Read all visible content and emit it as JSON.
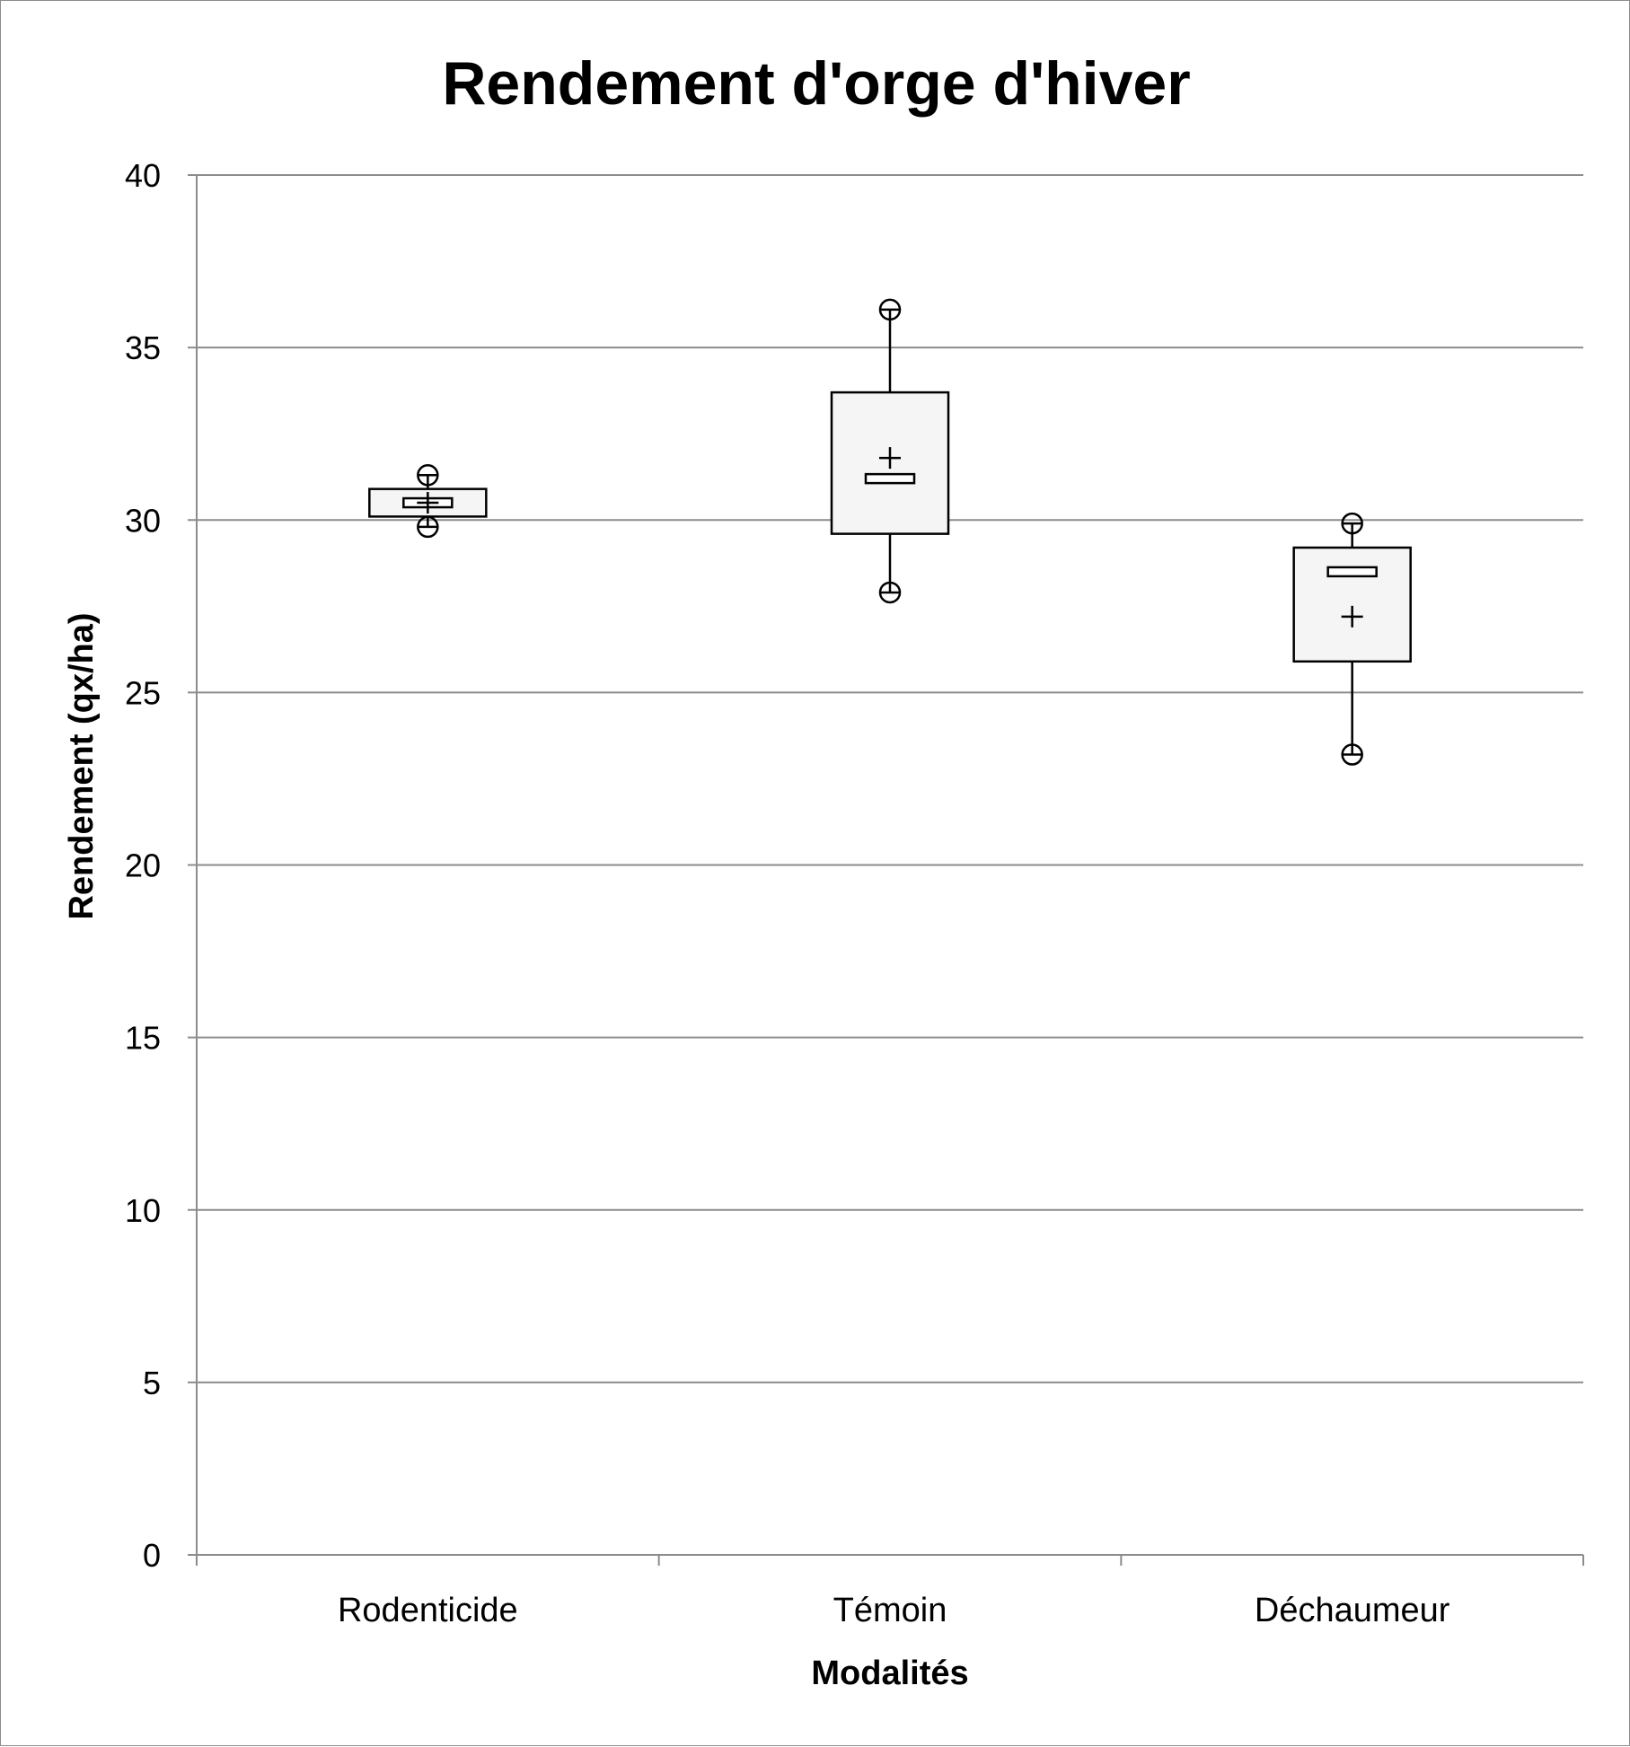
{
  "chart_data": {
    "type": "boxplot",
    "title": "Rendement d'orge d'hiver",
    "xlabel": "Modalités",
    "ylabel": "Rendement (qx/ha)",
    "ylim": [
      0,
      40
    ],
    "yticks": [
      0,
      5,
      10,
      15,
      20,
      25,
      30,
      35,
      40
    ],
    "grid": true,
    "categories": [
      "Rodenticide",
      "Témoin",
      "Déchaumeur"
    ],
    "boxes": [
      {
        "category": "Rodenticide",
        "min": 29.8,
        "q1": 30.1,
        "median": 30.5,
        "mean": 30.5,
        "q3": 30.9,
        "max": 31.3
      },
      {
        "category": "Témoin",
        "min": 27.9,
        "q1": 29.6,
        "median": 31.2,
        "mean": 31.8,
        "q3": 33.7,
        "max": 36.1
      },
      {
        "category": "Déchaumeur",
        "min": 23.2,
        "q1": 25.9,
        "median": 28.5,
        "mean": 27.2,
        "q3": 29.2,
        "max": 29.9
      }
    ],
    "colors": {
      "box_fill": "#f5f5f5",
      "stroke": "#000000",
      "grid": "#8c8c8c"
    }
  }
}
